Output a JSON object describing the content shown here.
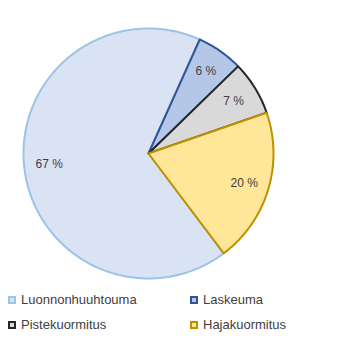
{
  "chart_data": {
    "type": "pie",
    "categories": [
      "Luonnonhuuhtouma",
      "Laskeuma",
      "Pistekuormitus",
      "Hajakuormitus"
    ],
    "values": [
      67,
      6,
      7,
      20
    ],
    "value_labels": [
      "67 %",
      "6 %",
      "7 %",
      "20 %"
    ],
    "colors": [
      "#dae3f3",
      "#b4c7e7",
      "#d9d9d9",
      "#ffe699"
    ],
    "data_labels": true,
    "legend": "bottom"
  }
}
